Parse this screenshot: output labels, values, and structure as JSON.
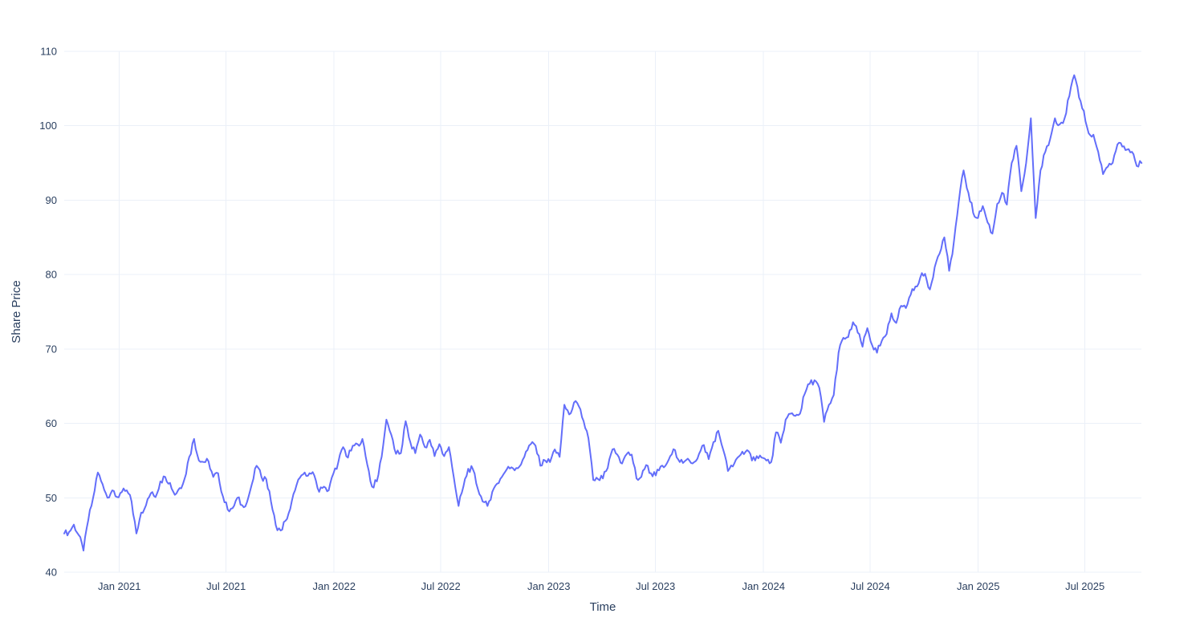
{
  "chart_data": {
    "type": "line",
    "title": "",
    "xlabel": "Time",
    "ylabel": "Share Price",
    "series_name": "Share Price",
    "legend": "none",
    "grid": "on",
    "background_color": "#ffffff",
    "line_color": "#636EFA",
    "grid_color": "#EBF0F8",
    "text_color": "#2a3f5f",
    "ylim": [
      40,
      110
    ],
    "y_ticks": [
      40,
      50,
      60,
      70,
      80,
      90,
      100,
      110
    ],
    "x_range_years": [
      2020.743,
      2025.76
    ],
    "x_ticks": [
      {
        "year": 2021.0,
        "label": "Jan 2021"
      },
      {
        "year": 2021.497,
        "label": "Jul 2021"
      },
      {
        "year": 2022.0,
        "label": "Jan 2022"
      },
      {
        "year": 2022.497,
        "label": "Jul 2022"
      },
      {
        "year": 2023.0,
        "label": "Jan 2023"
      },
      {
        "year": 2023.497,
        "label": "Jul 2023"
      },
      {
        "year": 2024.0,
        "label": "Jan 2024"
      },
      {
        "year": 2024.497,
        "label": "Jul 2024"
      },
      {
        "year": 2025.0,
        "label": "Jan 2025"
      },
      {
        "year": 2025.497,
        "label": "Jul 2025"
      }
    ],
    "sampling": {
      "x_start_year": 2020.743,
      "x_step_years": 0.0224,
      "note": "approx 8-day anchors read from plot"
    },
    "values": [
      45.2,
      45.4,
      46.4,
      45.0,
      42.9,
      47.0,
      50.0,
      53.4,
      51.8,
      50.0,
      51.0,
      50.1,
      50.8,
      51.0,
      49.5,
      45.2,
      48.0,
      49.0,
      50.6,
      50.1,
      52.2,
      52.8,
      52.0,
      50.4,
      51.3,
      52.5,
      55.5,
      57.9,
      55.0,
      54.8,
      54.9,
      52.8,
      53.3,
      50.2,
      48.4,
      48.6,
      50.0,
      49.0,
      49.4,
      51.8,
      54.3,
      52.8,
      52.5,
      49.5,
      46.3,
      45.6,
      46.9,
      48.5,
      51.0,
      52.7,
      53.4,
      53.3,
      53.0,
      50.8,
      51.5,
      51.0,
      53.3,
      54.8,
      56.8,
      55.4,
      57.0,
      57.2,
      57.9,
      54.5,
      51.5,
      52.2,
      55.5,
      60.5,
      58.5,
      55.9,
      56.0,
      60.3,
      57.4,
      56.0,
      58.5,
      56.8,
      57.8,
      55.6,
      57.2,
      55.6,
      56.8,
      52.8,
      48.9,
      51.5,
      53.9,
      53.8,
      51.2,
      49.5,
      48.9,
      50.8,
      51.9,
      52.8,
      53.8,
      54.1,
      54.0,
      54.5,
      56.2,
      57.2,
      57.0,
      54.3,
      55.0,
      54.8,
      56.5,
      55.5,
      62.5,
      61.2,
      62.8,
      62.3,
      60.3,
      58.0,
      52.4,
      52.5,
      52.6,
      54.0,
      56.5,
      55.8,
      54.6,
      55.9,
      55.8,
      52.6,
      52.8,
      54.4,
      53.3,
      53.0,
      54.2,
      54.3,
      55.6,
      56.4,
      54.8,
      54.9,
      55.0,
      54.8,
      55.9,
      57.1,
      55.2,
      57.5,
      59.0,
      56.5,
      53.6,
      54.2,
      55.4,
      56.2,
      56.4,
      55.0,
      55.6,
      55.4,
      55.0,
      54.8,
      58.8,
      57.4,
      60.5,
      61.3,
      61.0,
      61.3,
      64.0,
      65.3,
      65.8,
      64.8,
      60.2,
      62.5,
      63.8,
      69.5,
      71.5,
      71.6,
      73.6,
      72.2,
      70.3,
      72.8,
      70.5,
      69.5,
      71.1,
      72.0,
      74.8,
      73.5,
      75.8,
      75.5,
      77.3,
      78.4,
      79.6,
      80.1,
      78.0,
      81.0,
      82.8,
      85.0,
      80.5,
      84.5,
      89.8,
      94.0,
      91.0,
      88.3,
      87.6,
      89.2,
      87.0,
      85.5,
      89.5,
      91.0,
      89.4,
      95.0,
      97.3,
      91.2,
      95.0,
      101.0,
      87.6,
      94.0,
      96.5,
      98.2,
      101.0,
      100.2,
      101.0,
      104.0,
      106.8,
      103.8,
      102.0,
      99.0,
      98.8,
      96.5,
      93.5,
      94.5,
      95.0,
      97.5,
      97.2,
      96.8,
      96.5,
      94.6,
      95.0
    ],
    "render_noise": {
      "amplitude": 0.45,
      "substeps": 2
    }
  }
}
